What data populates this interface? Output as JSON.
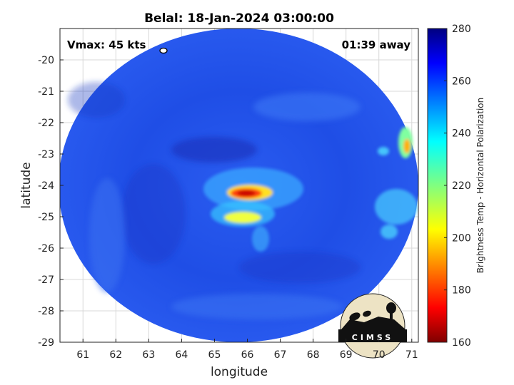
{
  "title": "Belal: 18-Jan-2024 03:00:00",
  "annotations": {
    "vmax": "Vmax: 45 kts",
    "time_away": "01:39 away"
  },
  "axes": {
    "xlabel": "longitude",
    "ylabel": "latitude",
    "xlim": [
      60.3,
      71.2
    ],
    "ylim": [
      -29,
      -19
    ],
    "xticks": [
      "61",
      "62",
      "63",
      "64",
      "65",
      "66",
      "67",
      "68",
      "69",
      "70",
      "71"
    ],
    "yticks": [
      "-20",
      "-21",
      "-22",
      "-23",
      "-24",
      "-25",
      "-26",
      "-27",
      "-28",
      "-29"
    ],
    "grid": true
  },
  "colorbar": {
    "label": "Brightness Temp - Horizontal Polarization",
    "min": 160,
    "max": 280,
    "ticks": [
      "280",
      "260",
      "240",
      "220",
      "200",
      "180",
      "160"
    ],
    "colormap": "jet"
  },
  "logo": {
    "text": "CIMSS"
  },
  "colors": {
    "background_field": "#1f4ee6",
    "eye_core": "#c80000"
  }
}
